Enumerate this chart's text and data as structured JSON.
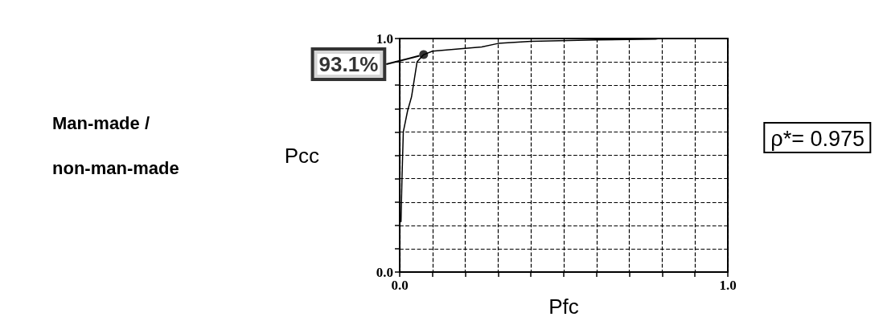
{
  "chart_data": {
    "type": "line",
    "title": "Man-made / non-man-made",
    "xlabel": "Pfc",
    "ylabel": "Pcc",
    "x": [
      0.004,
      0.007,
      0.011,
      0.024,
      0.036,
      0.053,
      0.073,
      0.1,
      0.25,
      0.3,
      0.4,
      0.6,
      0.78,
      0.79
    ],
    "series": [
      {
        "color": "#000000",
        "values": [
          0.216,
          0.4,
          0.6,
          0.69,
          0.75,
          0.9,
          0.931,
          0.946,
          0.964,
          0.979,
          0.988,
          0.994,
          0.997,
          1.0
        ]
      }
    ],
    "xlim": [
      0,
      1
    ],
    "ylim": [
      0,
      1
    ],
    "xticks": [
      {
        "value": 0,
        "label": "0.0"
      },
      {
        "value": 0.1,
        "label": null
      },
      {
        "value": 0.2,
        "label": null
      },
      {
        "value": 0.3,
        "label": null
      },
      {
        "value": 0.4,
        "label": null
      },
      {
        "value": 0.5,
        "label": null
      },
      {
        "value": 0.6,
        "label": null
      },
      {
        "value": 0.7,
        "label": null
      },
      {
        "value": 0.8,
        "label": null
      },
      {
        "value": 0.9,
        "label": null
      },
      {
        "value": 1,
        "label": "1.0"
      }
    ],
    "yticks": [
      {
        "value": 0,
        "label": "0.0"
      },
      {
        "value": 0.1,
        "label": null
      },
      {
        "value": 0.2,
        "label": null
      },
      {
        "value": 0.3,
        "label": null
      },
      {
        "value": 0.4,
        "label": null
      },
      {
        "value": 0.5,
        "label": null
      },
      {
        "value": 0.6,
        "label": null
      },
      {
        "value": 0.7,
        "label": null
      },
      {
        "value": 0.8,
        "label": null
      },
      {
        "value": 0.9,
        "label": null
      },
      {
        "value": 1,
        "label": "1.0"
      }
    ],
    "annotations": [
      {
        "text": "93.1%",
        "x": 0.073,
        "y": 0.931
      },
      "ρ*= 0.975"
    ],
    "grid": true,
    "marker": "none",
    "line_style": "solid"
  }
}
